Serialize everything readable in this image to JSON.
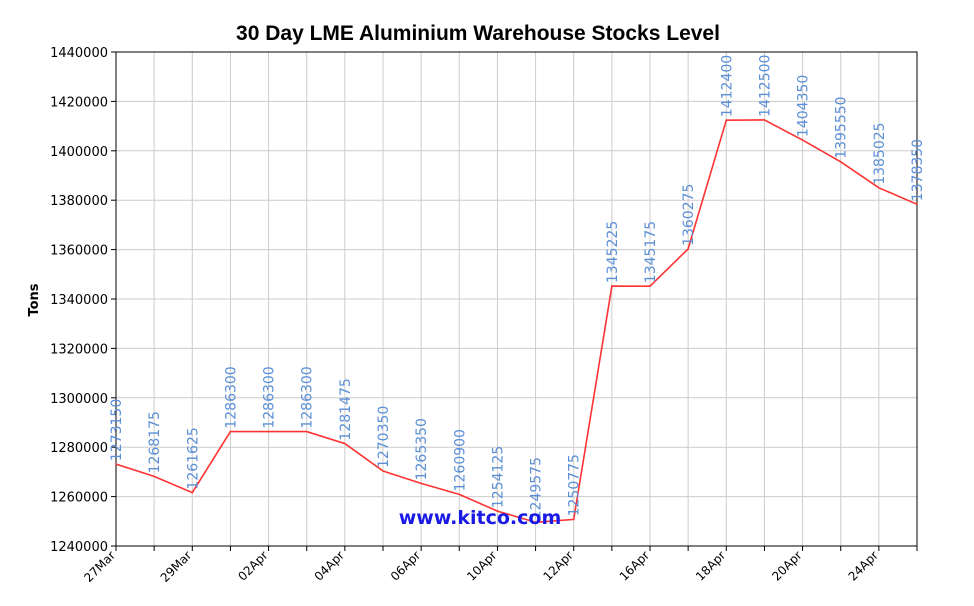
{
  "chart_data": {
    "type": "line",
    "title": "30 Day LME Aluminium Warehouse Stocks Level",
    "ylabel": "Tons",
    "xlabel": "",
    "ylim": [
      1240000,
      1440000
    ],
    "yticks": [
      1240000,
      1260000,
      1280000,
      1300000,
      1320000,
      1340000,
      1360000,
      1380000,
      1400000,
      1420000,
      1440000
    ],
    "xtick_labels": [
      "27Mar",
      "29Mar",
      "02Apr",
      "04Apr",
      "06Apr",
      "10Apr",
      "12Apr",
      "16Apr",
      "18Apr",
      "20Apr",
      "24Apr"
    ],
    "grid": true,
    "line_color": "#ff3333",
    "label_color": "#5b8fd6",
    "values": [
      1273150,
      1268175,
      1261625,
      1286300,
      1286300,
      1286300,
      1281475,
      1270350,
      1265350,
      1260900,
      1254125,
      1249575,
      1250775,
      1345225,
      1345175,
      1360275,
      1412400,
      1412500,
      1404350,
      1395550,
      1385025,
      1378350
    ],
    "data_labels": [
      "1273150",
      "1268175",
      "1261625",
      "1286300",
      "1286300",
      "1286300",
      "1281475",
      "1270350",
      "1265350",
      "1260900",
      "1254125",
      "1249575",
      "1250775",
      "1345225",
      "1345175",
      "1360275",
      "1412400",
      "1412500",
      "1404350",
      "1395550",
      "1385025",
      "1378350"
    ]
  },
  "watermark": "www.kitco.com"
}
